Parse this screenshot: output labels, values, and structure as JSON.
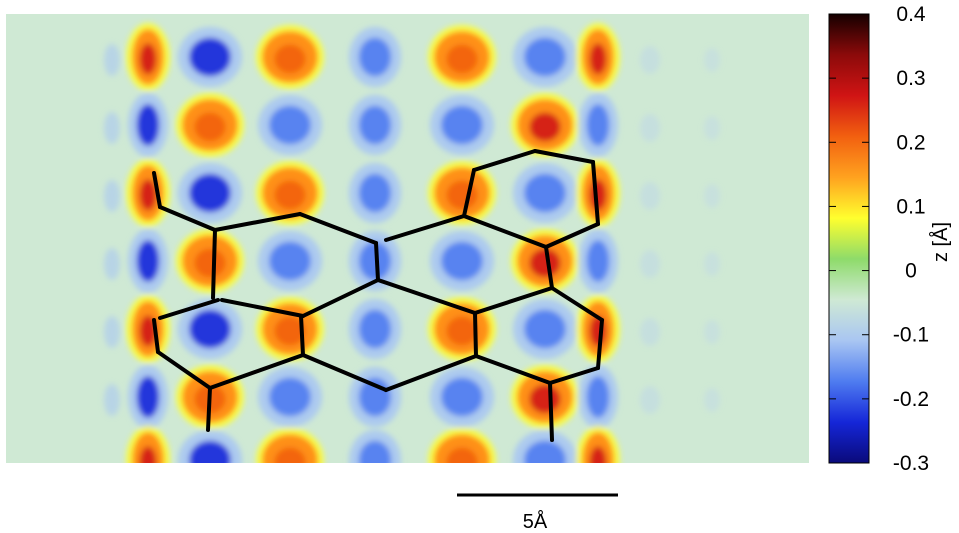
{
  "chart_data": {
    "type": "heatmap",
    "title": "",
    "colorbar": {
      "label": "z [Å]",
      "range": [
        -0.3,
        0.4
      ],
      "ticks": [
        "0.4",
        "0.3",
        "0.2",
        "0.1",
        "0",
        "-0.1",
        "-0.2",
        "-0.3"
      ],
      "colormap": [
        "#0a0a7a",
        "#1526d8",
        "#4f7cf0",
        "#a9c6f2",
        "#cfe9d4",
        "#8edb6a",
        "#ffff2e",
        "#ffa21f",
        "#f26010",
        "#d01414",
        "#8c0a0a",
        "#150000"
      ]
    },
    "grid": false,
    "legend": "none"
  },
  "scalebar": {
    "label": "5Å"
  },
  "colors": {
    "background": "#ffffff",
    "field": "#cfe9d4",
    "bonds": "#000000"
  }
}
